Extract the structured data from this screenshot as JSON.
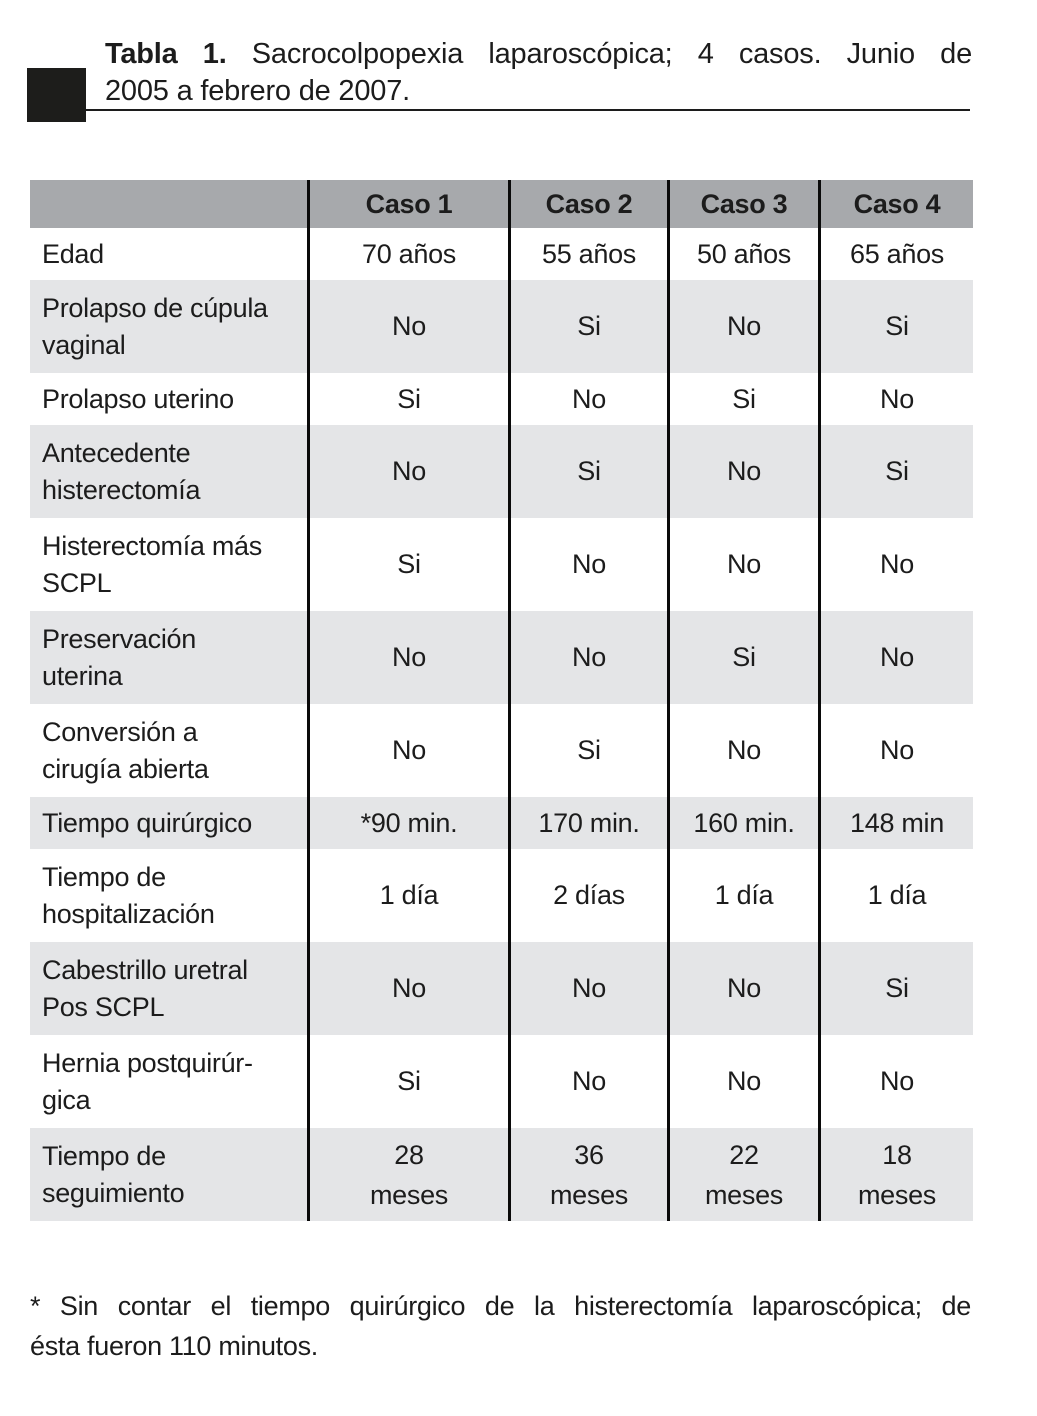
{
  "title": {
    "label_bold": "Tabla 1.",
    "line1_rest": "Sacrocolpopexia laparoscópica; 4 casos. Junio de",
    "line2": "2005 a febrero de 2007."
  },
  "table": {
    "header": {
      "corner": "",
      "cols": [
        "Caso 1",
        "Caso 2",
        "Caso 3",
        "Caso 4"
      ]
    },
    "rows": [
      {
        "label": [
          "Edad"
        ],
        "values": [
          "70 años",
          "55 años",
          "50 años",
          "65 años"
        ]
      },
      {
        "label": [
          "Prolapso de cúpula",
          "vaginal"
        ],
        "values": [
          "No",
          "Si",
          "No",
          "Si"
        ]
      },
      {
        "label": [
          "Prolapso uterino"
        ],
        "values": [
          "Si",
          "No",
          "Si",
          "No"
        ]
      },
      {
        "label": [
          "Antecedente",
          "histerectomía"
        ],
        "values": [
          "No",
          "Si",
          "No",
          "Si"
        ]
      },
      {
        "label": [
          "Histerectomía más",
          "SCPL"
        ],
        "values": [
          "Si",
          "No",
          "No",
          "No"
        ]
      },
      {
        "label": [
          "Preservación",
          "uterina"
        ],
        "values": [
          "No",
          "No",
          "Si",
          "No"
        ]
      },
      {
        "label": [
          "Conversión a",
          "cirugía abierta"
        ],
        "values": [
          "No",
          "Si",
          "No",
          "No"
        ]
      },
      {
        "label": [
          "Tiempo quirúrgico"
        ],
        "values": [
          "*90 min.",
          "170 min.",
          "160 min.",
          "148 min"
        ]
      },
      {
        "label": [
          "Tiempo de",
          "hospitalización"
        ],
        "values": [
          "1 día",
          "2 días",
          "1 día",
          "1 día"
        ]
      },
      {
        "label": [
          "Cabestrillo uretral",
          "Pos SCPL"
        ],
        "values": [
          "No",
          "No",
          "No",
          "Si"
        ]
      },
      {
        "label": [
          "Hernia postquirúr-",
          "gica"
        ],
        "values": [
          "Si",
          "No",
          "No",
          "No"
        ]
      },
      {
        "label": [
          "Tiempo de",
          "seguimiento"
        ],
        "values": [
          [
            "28",
            "meses"
          ],
          [
            "36",
            "meses"
          ],
          [
            "22",
            "meses"
          ],
          [
            "18",
            "meses"
          ]
        ]
      }
    ]
  },
  "footnote": {
    "line1": "* Sin contar el tiempo quirúrgico de la histerectomía laparoscópica; de",
    "line2": "ésta fueron 110 minutos."
  },
  "colors": {
    "text": "#1c1c1c",
    "header_bg": "#a7a9ac",
    "row_alt_bg": "#e4e5e7",
    "row_bg": "#ffffff",
    "divider_line": "#0a0a0a",
    "marker_square": "#1d1d1b"
  }
}
